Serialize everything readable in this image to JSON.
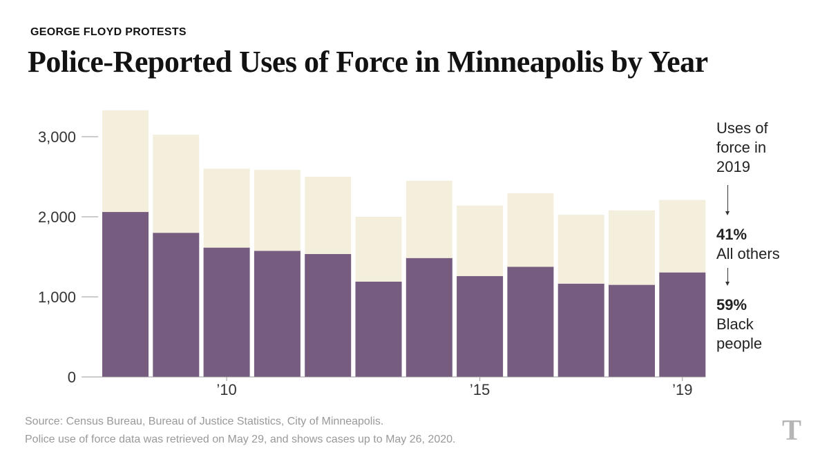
{
  "kicker": "GEORGE FLOYD PROTESTS",
  "title": "Police-Reported Uses of Force in Minneapolis by Year",
  "chart_data": {
    "type": "bar",
    "stacked": true,
    "categories": [
      "2008",
      "2009",
      "2010",
      "2011",
      "2012",
      "2013",
      "2014",
      "2015",
      "2016",
      "2017",
      "2018",
      "2019"
    ],
    "x_tick_labels": [
      {
        "category": "2010",
        "label": "’10"
      },
      {
        "category": "2015",
        "label": "’15"
      },
      {
        "category": "2019",
        "label": "’19"
      }
    ],
    "series": [
      {
        "name": "Black people",
        "color": "#765c7e",
        "values": [
          2060,
          1800,
          1615,
          1575,
          1535,
          1190,
          1485,
          1260,
          1375,
          1165,
          1150,
          1305
        ]
      },
      {
        "name": "All others",
        "color": "#f3efdc",
        "values": [
          1270,
          1225,
          985,
          1010,
          965,
          810,
          965,
          880,
          920,
          860,
          930,
          905
        ]
      }
    ],
    "y_ticks": [
      {
        "value": 0,
        "label": "0"
      },
      {
        "value": 1000,
        "label": "1,000"
      },
      {
        "value": 2000,
        "label": "2,000"
      },
      {
        "value": 3000,
        "label": "3,000"
      }
    ],
    "ylim": [
      0,
      3400
    ]
  },
  "annotation": {
    "heading_lines": [
      "Uses of",
      "force in",
      "2019"
    ],
    "others_pct": "41%",
    "others_label": "All others",
    "black_pct": "59%",
    "black_label_lines": [
      "Black",
      "people"
    ]
  },
  "source": {
    "line1": "Source: Census Bureau, Bureau of Justice Statistics, City of Minneapolis.",
    "line2": "Police use of force data was retrieved on May 29, and shows cases up to May 26, 2020."
  },
  "logo": {
    "glyph": "T",
    "name": "new-york-times-logo"
  }
}
